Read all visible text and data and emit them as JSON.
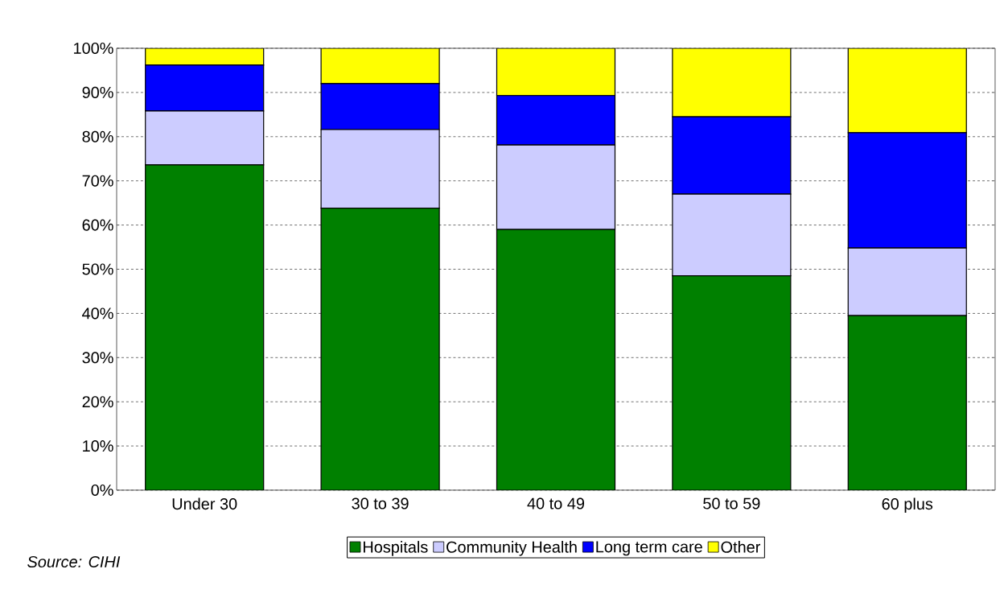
{
  "chart_data": {
    "type": "bar",
    "stacked": true,
    "categories": [
      "Under 30",
      "30 to 39",
      "40 to 49",
      "50 to 59",
      "60 plus"
    ],
    "series": [
      {
        "name": "Hospitals",
        "color": "#008000",
        "values": [
          73.6,
          63.8,
          59.0,
          48.5,
          39.5
        ]
      },
      {
        "name": "Community Health",
        "color": "#ccccff",
        "values": [
          12.2,
          17.8,
          19.1,
          18.5,
          15.3
        ]
      },
      {
        "name": "Long term care",
        "color": "#0000ff",
        "values": [
          10.4,
          10.4,
          11.2,
          17.5,
          26.1
        ]
      },
      {
        "name": "Other",
        "color": "#ffff00",
        "values": [
          3.8,
          8.0,
          10.7,
          15.5,
          19.1
        ]
      }
    ],
    "ylim": [
      0,
      100
    ],
    "yticks": [
      {
        "value": 0,
        "label": "0%"
      },
      {
        "value": 10,
        "label": "10%"
      },
      {
        "value": 20,
        "label": "20%"
      },
      {
        "value": 30,
        "label": "30%"
      },
      {
        "value": 40,
        "label": "40%"
      },
      {
        "value": 50,
        "label": "50%"
      },
      {
        "value": 60,
        "label": "60%"
      },
      {
        "value": 70,
        "label": "70%"
      },
      {
        "value": 80,
        "label": "80%"
      },
      {
        "value": 90,
        "label": "90%"
      },
      {
        "value": 100,
        "label": "100%"
      }
    ],
    "grid": "y",
    "legend": "bottom",
    "annotations": [
      "Source: CIHI"
    ]
  }
}
